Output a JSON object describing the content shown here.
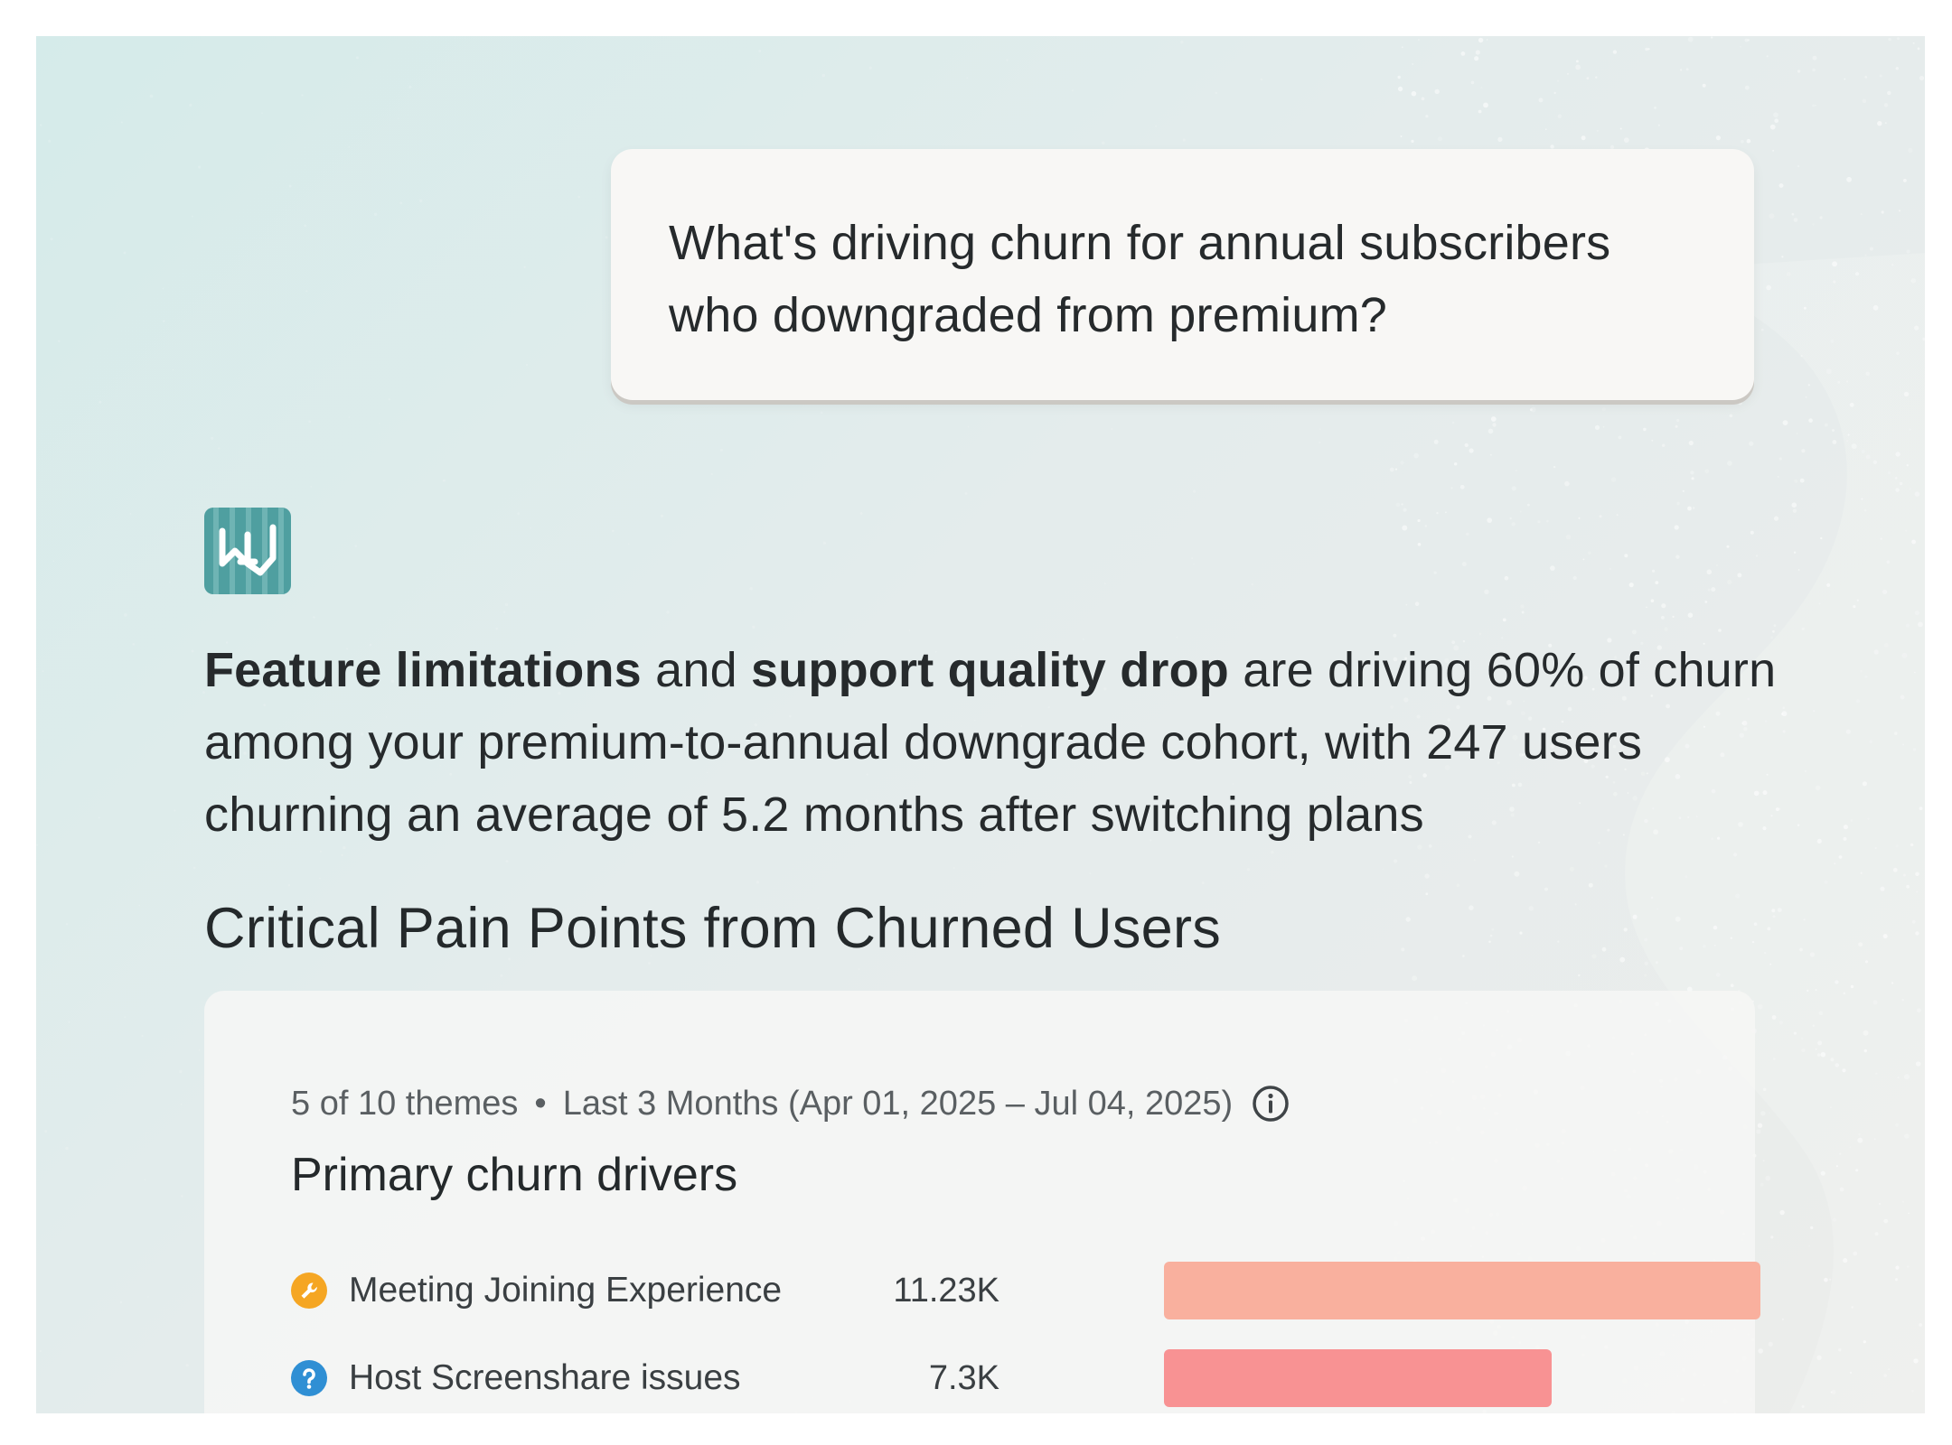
{
  "conversation": {
    "user_message": "What's driving churn for annual subscribers who downgraded from premium?",
    "answer": {
      "bold_1": "Feature limitations",
      "text_1": " and ",
      "bold_2": "support quality drop",
      "text_2": " are driving 60% of churn among your premium-to-annual downgrade cohort, with 247 users churning an average of 5.2 months after switching plans"
    },
    "section_title": "Critical Pain Points from Churned Users"
  },
  "card": {
    "themes_count": "5 of 10 themes",
    "separator": "•",
    "date_range": "Last 3 Months (Apr 01, 2025 – Jul 04, 2025)",
    "title": "Primary churn drivers"
  },
  "chart_data": {
    "type": "bar",
    "orientation": "horizontal",
    "title": "Primary churn drivers",
    "categories": [
      "Meeting Joining Experience",
      "Host Screenshare issues"
    ],
    "values": [
      11230,
      7300
    ],
    "value_labels": [
      "11.23K",
      "7.3K"
    ],
    "colors": [
      "#f9b09e",
      "#f89293"
    ],
    "icons": [
      "wrench-icon",
      "question-icon"
    ],
    "icon_colors": [
      "#f5a623",
      "#2f8fd4"
    ],
    "xlim": [
      0,
      11230
    ],
    "grid": false
  },
  "colors": {
    "logo_bg": "#4f9fa0",
    "accent_teal": "#4f9fa0"
  }
}
